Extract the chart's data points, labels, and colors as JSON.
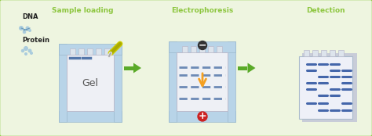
{
  "bg_color": "#eef5e0",
  "border_color": "#8dc63f",
  "title1": "Sample loading",
  "title2": "Electrophoresis",
  "title3": "Detection",
  "title_color": "#8dc63f",
  "title_fontsize": 6.5,
  "gel_label": "Gel",
  "gel_label_fontsize": 9,
  "gel_label_color": "#555555",
  "dna_label": "DNA",
  "protein_label": "Protein",
  "label_color": "#222222",
  "label_fontsize": 6.0,
  "arrow_fill": "#5aaa28",
  "gel_bg": "#b8d4e8",
  "gel_inner": "#eef0f5",
  "blue_band": "#5577aa",
  "orange_color": "#f5a020",
  "minus_color": "#333333",
  "plus_color": "#cc2222",
  "detect_band": "#4466aa",
  "notch_color": "#dde4ec",
  "shadow_color": "#c8ccd8"
}
